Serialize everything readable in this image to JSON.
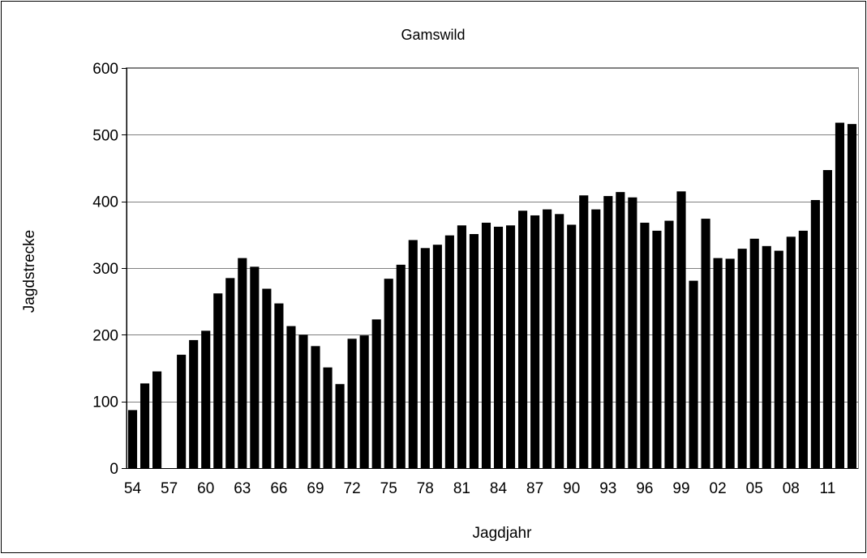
{
  "chart_data": {
    "type": "bar",
    "title": "Gamswild",
    "xlabel": "Jagdjahr",
    "ylabel": "Jagdstrecke",
    "ylim": [
      0,
      600
    ],
    "yticks": [
      0,
      100,
      200,
      300,
      400,
      500,
      600
    ],
    "grid": "horizontal",
    "bar_color": "#000000",
    "categories": [
      "54",
      "55",
      "56",
      "57",
      "58",
      "59",
      "60",
      "61",
      "62",
      "63",
      "64",
      "65",
      "66",
      "67",
      "68",
      "69",
      "70",
      "71",
      "72",
      "73",
      "74",
      "75",
      "76",
      "77",
      "78",
      "79",
      "80",
      "81",
      "82",
      "83",
      "84",
      "85",
      "86",
      "87",
      "88",
      "89",
      "90",
      "91",
      "92",
      "93",
      "94",
      "95",
      "96",
      "97",
      "98",
      "99",
      "00",
      "01",
      "02",
      "03",
      "04",
      "05",
      "06",
      "07",
      "08",
      "09",
      "10",
      "11",
      "12",
      "13"
    ],
    "tick_labels": [
      "54",
      "57",
      "60",
      "63",
      "66",
      "69",
      "72",
      "75",
      "78",
      "81",
      "84",
      "87",
      "90",
      "93",
      "96",
      "99",
      "02",
      "05",
      "08",
      "11"
    ],
    "values": [
      87,
      127,
      145,
      0,
      170,
      192,
      206,
      262,
      285,
      315,
      302,
      269,
      247,
      213,
      200,
      183,
      151,
      126,
      194,
      199,
      223,
      284,
      305,
      342,
      330,
      335,
      349,
      364,
      351,
      368,
      362,
      364,
      386,
      379,
      388,
      381,
      365,
      409,
      388,
      408,
      414,
      406,
      368,
      356,
      371,
      415,
      281,
      374,
      315,
      314,
      329,
      344,
      333,
      326,
      347,
      356,
      402,
      447,
      518,
      516
    ]
  }
}
